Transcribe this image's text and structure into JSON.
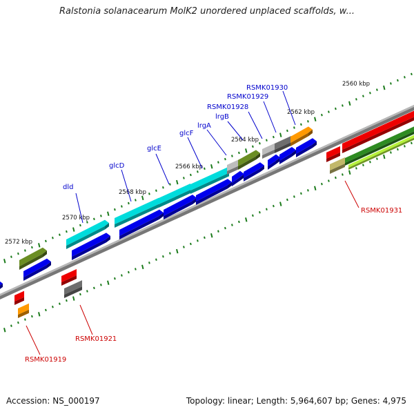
{
  "header": {
    "title": "Ralstonia solanacearum MolK2 unordered unplaced scaffolds, w..."
  },
  "footer": {
    "accession": "Accession: NS_000197",
    "summary": "Topology: linear; Length: 5,964,607 bp; Genes: 4,975"
  },
  "colors": {
    "backbone": "#808080",
    "cds_blue": "#0000ee",
    "cyan": "#00dcdc",
    "olive": "#6b8e23",
    "gray": "#bdbdbd",
    "dark_gray": "#6e6e6e",
    "orange": "#ff9900",
    "red": "#ee0000",
    "khaki": "#c2b86a",
    "green": "#2e8b22",
    "yellowgreen": "#b5f23a",
    "tick": "#1a7a1a",
    "label_blue": "#0000cc",
    "label_red": "#cc0000"
  },
  "ticks": [
    {
      "label": "2560 kbp"
    },
    {
      "label": "2562 kbp"
    },
    {
      "label": "2564 kbp"
    },
    {
      "label": "2566 kbp"
    },
    {
      "label": "2568 kbp"
    },
    {
      "label": "2570 kbp"
    },
    {
      "label": "2572 kbp"
    }
  ],
  "gene_labels_top": [
    {
      "text": "dld"
    },
    {
      "text": "glcD"
    },
    {
      "text": "glcE"
    },
    {
      "text": "glcF"
    },
    {
      "text": "lrgA"
    },
    {
      "text": "lrgB"
    },
    {
      "text": "RSMK01928"
    },
    {
      "text": "RSMK01929"
    },
    {
      "text": "RSMK01930"
    }
  ],
  "gene_labels_bottom": [
    {
      "text": "RSMK01931"
    },
    {
      "text": "RSMK01921"
    },
    {
      "text": "RSMK01919"
    }
  ]
}
